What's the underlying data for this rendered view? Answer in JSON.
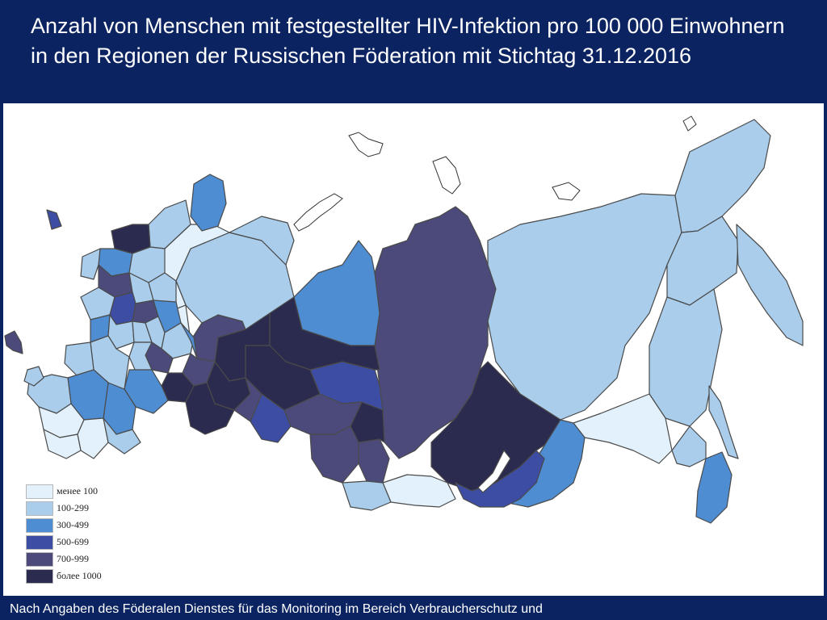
{
  "header": {
    "title": "Anzahl von Menschen mit festgestellter HIV-Infektion pro 100 000 Einwohnern in den Regionen der Russischen Föderation mit Stichtag 31.12.2016"
  },
  "legend": {
    "items": [
      {
        "label": "менее 100",
        "color": "#e2f1fb"
      },
      {
        "label": "100-299",
        "color": "#a9cdeb"
      },
      {
        "label": "300-499",
        "color": "#4f8dd3"
      },
      {
        "label": "500-699",
        "color": "#3d4da3"
      },
      {
        "label": "700-999",
        "color": "#4b4a7b"
      },
      {
        "label": "более 1000",
        "color": "#2b2b4f"
      }
    ]
  },
  "footer": {
    "source_text": "Nach Angaben des Föderalen Dienstes für das Monitoring im Bereich Verbraucherschutz und"
  }
}
